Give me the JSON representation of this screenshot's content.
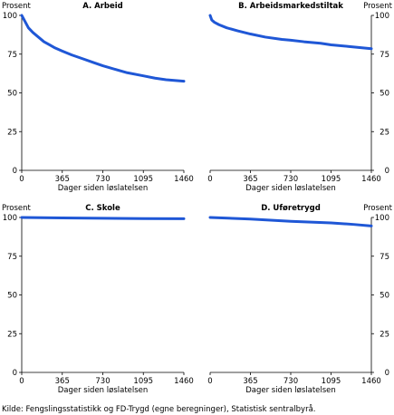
{
  "source": "Kilde: Fengslingsstatistikk og FD-Trygd (egne beregninger), Statistisk sentralbyrå.",
  "chart_data": [
    {
      "type": "line",
      "title": "A. Arbeid",
      "unit_label": "Prosent",
      "xlabel": "Dager siden løslatelsen",
      "x_ticks": [
        0,
        365,
        730,
        1095,
        1460
      ],
      "y_ticks": [
        0,
        25,
        50,
        75,
        100
      ],
      "xlim": [
        0,
        1460
      ],
      "ylim": [
        0,
        100
      ],
      "grid": false,
      "series": [
        {
          "x": [
            0,
            30,
            60,
            100,
            150,
            200,
            250,
            300,
            365,
            450,
            550,
            650,
            730,
            850,
            950,
            1095,
            1200,
            1300,
            1460
          ],
          "values": [
            100,
            96,
            92,
            89,
            86,
            83,
            81,
            79,
            77,
            74.5,
            72,
            69.5,
            67.5,
            65,
            63,
            61,
            59.5,
            58.5,
            57.5
          ]
        }
      ]
    },
    {
      "type": "line",
      "title": "B. Arbeidsmarkedstiltak",
      "unit_label": "Prosent",
      "xlabel": "Dager siden løslatelsen",
      "x_ticks": [
        0,
        365,
        730,
        1095,
        1460
      ],
      "y_ticks": [
        0,
        25,
        50,
        75,
        100
      ],
      "xlim": [
        0,
        1460
      ],
      "ylim": [
        0,
        100
      ],
      "grid": false,
      "series": [
        {
          "x": [
            0,
            15,
            40,
            80,
            150,
            250,
            365,
            500,
            650,
            730,
            850,
            1000,
            1095,
            1250,
            1460
          ],
          "values": [
            100,
            97,
            95.5,
            94,
            92,
            90,
            88,
            86,
            84.5,
            84,
            83,
            82,
            81,
            80,
            78.5
          ]
        }
      ]
    },
    {
      "type": "line",
      "title": "C. Skole",
      "unit_label": "Prosent",
      "xlabel": "Dager siden løslatelsen",
      "x_ticks": [
        0,
        365,
        730,
        1095,
        1460
      ],
      "y_ticks": [
        0,
        25,
        50,
        75,
        100
      ],
      "xlim": [
        0,
        1460
      ],
      "ylim": [
        0,
        100
      ],
      "grid": false,
      "series": [
        {
          "x": [
            0,
            365,
            730,
            1095,
            1460
          ],
          "values": [
            100,
            99.7,
            99.5,
            99.3,
            99.2
          ]
        }
      ]
    },
    {
      "type": "line",
      "title": "D. Uføretrygd",
      "unit_label": "Prosent",
      "xlabel": "Dager siden løslatelsen",
      "x_ticks": [
        0,
        365,
        730,
        1095,
        1460
      ],
      "y_ticks": [
        0,
        25,
        50,
        75,
        100
      ],
      "xlim": [
        0,
        1460
      ],
      "ylim": [
        0,
        100
      ],
      "grid": false,
      "series": [
        {
          "x": [
            0,
            365,
            730,
            1095,
            1300,
            1460
          ],
          "values": [
            100,
            99,
            97.5,
            96.5,
            95.5,
            94.5
          ]
        }
      ]
    }
  ]
}
